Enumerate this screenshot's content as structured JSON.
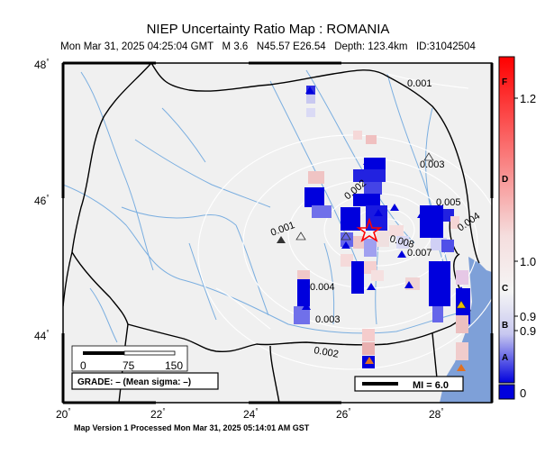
{
  "title": "NIEP Uncertainty Ratio Map : ROMANIA",
  "subtitle": "Mon Mar 31, 2025 04:25:04 GMT   M 3.6   N45.57 E26.54   Depth: 123.4km   ID:31042504",
  "footer": "Map Version 1 Processed Mon Mar 31, 2025 05:14:01 AM GST",
  "axes": {
    "lat_ticks": [
      {
        "label": "48",
        "deg": "°"
      },
      {
        "label": "46",
        "deg": "°"
      },
      {
        "label": "44",
        "deg": "°"
      }
    ],
    "lon_ticks": [
      {
        "label": "20",
        "deg": "°"
      },
      {
        "label": "22",
        "deg": "°"
      },
      {
        "label": "24",
        "deg": "°"
      },
      {
        "label": "26",
        "deg": "°"
      },
      {
        "label": "28",
        "deg": "°"
      }
    ]
  },
  "contour_labels": [
    "0.001",
    "0.002",
    "0.003",
    "0.005",
    "0.004",
    "0.008",
    "0.007",
    "0.001",
    "0.004",
    "0.003",
    "0.002"
  ],
  "scale_bar": {
    "ticks": [
      "0",
      "75",
      "150"
    ]
  },
  "grade_text": "GRADE: – (Mean sigma: –)",
  "mi_legend": "MI = 6.0",
  "colorbar": {
    "left_letters": [
      "F",
      "D",
      "C",
      "B",
      "A"
    ],
    "right_values": [
      "1.2",
      "1.0",
      "0.9",
      "0.9",
      "0"
    ]
  },
  "epicenter": {
    "lat": 45.57,
    "lon": 26.54,
    "depth_km": 123.4,
    "magnitude": 3.6
  },
  "colors": {
    "land": "#f0f0f0",
    "sea": "#7ea0d8",
    "rivers": "#7aaee0",
    "border": "#000000",
    "high": "#ff0000",
    "low": "#0000dd"
  },
  "icons": [
    "epicenter-star-icon",
    "station-triangle-icon",
    "scale-bar-icon",
    "colorbar-icon"
  ]
}
